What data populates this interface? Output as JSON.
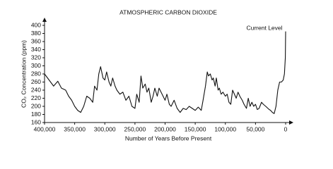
{
  "chart_data": {
    "type": "line",
    "title": "ATMOSPHERIC CARBON DIOXIDE",
    "x_label": "Number of Years Before Present",
    "y_label": "CO₂ Concentration (ppm)",
    "annotation": "Current Level",
    "color": "#111111",
    "x": [
      400000,
      390000,
      385000,
      378000,
      372000,
      365000,
      360000,
      355000,
      350000,
      345000,
      340000,
      335000,
      330000,
      325000,
      320000,
      317000,
      313000,
      310000,
      307000,
      303000,
      300000,
      297000,
      293000,
      290000,
      287000,
      283000,
      280000,
      275000,
      270000,
      265000,
      260000,
      255000,
      250000,
      247000,
      243000,
      240000,
      237000,
      233000,
      230000,
      227000,
      223000,
      220000,
      217000,
      213000,
      210000,
      205000,
      200000,
      197000,
      193000,
      190000,
      185000,
      180000,
      175000,
      170000,
      165000,
      160000,
      155000,
      150000,
      145000,
      140000,
      137000,
      133000,
      130000,
      128000,
      125000,
      122000,
      120000,
      117000,
      115000,
      112000,
      110000,
      107000,
      104000,
      100000,
      97000,
      94000,
      91000,
      88000,
      85000,
      82000,
      79000,
      76000,
      72000,
      69000,
      65000,
      62000,
      59000,
      56000,
      53000,
      50000,
      47000,
      44000,
      40000,
      37000,
      33000,
      28000,
      25000,
      22000,
      19000,
      16000,
      13000,
      10000,
      7000,
      4000,
      2000,
      500,
      0
    ],
    "values": [
      280,
      260,
      250,
      262,
      245,
      240,
      225,
      215,
      200,
      190,
      185,
      200,
      225,
      220,
      210,
      250,
      240,
      280,
      298,
      270,
      265,
      285,
      260,
      250,
      270,
      250,
      240,
      230,
      235,
      215,
      225,
      200,
      195,
      230,
      210,
      275,
      245,
      255,
      235,
      245,
      210,
      225,
      245,
      225,
      245,
      230,
      215,
      230,
      205,
      200,
      215,
      195,
      185,
      195,
      192,
      200,
      195,
      190,
      198,
      190,
      215,
      250,
      285,
      275,
      280,
      265,
      270,
      250,
      270,
      240,
      245,
      230,
      235,
      225,
      230,
      210,
      205,
      240,
      230,
      220,
      235,
      225,
      215,
      205,
      195,
      220,
      200,
      210,
      200,
      205,
      192,
      195,
      210,
      205,
      200,
      193,
      190,
      185,
      182,
      200,
      240,
      260,
      260,
      265,
      280,
      320,
      385
    ],
    "xlim": [
      400000,
      0
    ],
    "xticks": [
      {
        "value": 400000,
        "label": "400,000"
      },
      {
        "value": 350000,
        "label": "350,000"
      },
      {
        "value": 300000,
        "label": "300,000"
      },
      {
        "value": 250000,
        "label": "250,000"
      },
      {
        "value": 200000,
        "label": "200,000"
      },
      {
        "value": 150000,
        "label": "150,000"
      },
      {
        "value": 100000,
        "label": "100,000"
      },
      {
        "value": 50000,
        "label": "50,000"
      },
      0
    ],
    "ylim": [
      160,
      400
    ],
    "yticks": [
      160,
      180,
      200,
      220,
      240,
      260,
      280,
      300,
      320,
      340,
      360,
      380,
      400
    ],
    "grid": false
  }
}
